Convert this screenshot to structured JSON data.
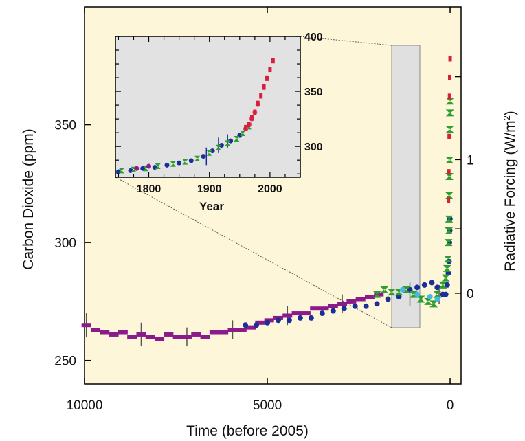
{
  "colors": {
    "panel_background": "#fdf6d8",
    "inset_background": "#e2e2e2",
    "highlight_box": "#e0e0e0",
    "series_purple": "#8b1a8b",
    "series_blue": "#1a2f9a",
    "series_green": "#2e9e2e",
    "series_cyan": "#49b8e0",
    "series_red": "#d8203a",
    "series_pink": "#e04690"
  },
  "chart_data": [
    {
      "type": "scatter",
      "xlabel": "Time (before 2005)",
      "ylabel": "Carbon Dioxide (ppm)",
      "y2label_main": "Radiative Forcing (W/m",
      "y2label_sup": "2",
      "y2label_end": ")",
      "x_reversed": true,
      "xlim": [
        10000,
        -300
      ],
      "ylim": [
        240,
        400
      ],
      "x_ticks": [
        10000,
        5000,
        0
      ],
      "y_ticks": [
        250,
        300,
        350
      ],
      "y2_ticks": [
        {
          "value": 0,
          "label": "0"
        },
        {
          "value": 1,
          "label": "1"
        }
      ],
      "y2_tick_positions_ppm": [
        278.5,
        305.8,
        335.2,
        370.4
      ],
      "series": [
        {
          "color": "#8b1a8b",
          "points": [
            [
              9950,
              265
            ],
            [
              9700,
              263
            ],
            [
              9450,
              262
            ],
            [
              9200,
              261
            ],
            [
              8950,
              262
            ],
            [
              8700,
              260
            ],
            [
              8450,
              261
            ],
            [
              8200,
              260
            ],
            [
              7950,
              259
            ],
            [
              7700,
              261
            ],
            [
              7450,
              260
            ],
            [
              7200,
              260
            ],
            [
              6950,
              261
            ],
            [
              6700,
              260
            ],
            [
              6450,
              262
            ],
            [
              6200,
              262
            ],
            [
              5950,
              263
            ],
            [
              5700,
              263
            ],
            [
              5450,
              264
            ],
            [
              5200,
              266
            ],
            [
              4950,
              267
            ],
            [
              4700,
              268
            ],
            [
              4450,
              269
            ],
            [
              4200,
              270
            ],
            [
              3950,
              270
            ],
            [
              3700,
              272
            ],
            [
              3450,
              272
            ],
            [
              3200,
              273
            ],
            [
              2950,
              274
            ],
            [
              2700,
              275
            ],
            [
              2450,
              276
            ],
            [
              2200,
              277
            ],
            [
              1950,
              278
            ]
          ]
        },
        {
          "color": "#1a2f9a",
          "points": [
            [
              5600,
              265
            ],
            [
              5300,
              265
            ],
            [
              5000,
              266
            ],
            [
              4700,
              267
            ],
            [
              4400,
              267
            ],
            [
              4100,
              268
            ],
            [
              3800,
              268
            ],
            [
              3500,
              270
            ],
            [
              3200,
              271
            ],
            [
              2900,
              272
            ],
            [
              2600,
              273
            ],
            [
              2300,
              273
            ],
            [
              2000,
              274
            ],
            [
              1700,
              276
            ],
            [
              1400,
              277
            ],
            [
              1100,
              280
            ],
            [
              900,
              281
            ],
            [
              700,
              282
            ],
            [
              500,
              283
            ],
            [
              350,
              281
            ],
            [
              200,
              278
            ],
            [
              120,
              278
            ],
            [
              80,
              282
            ],
            [
              50,
              287
            ],
            [
              30,
              292
            ],
            [
              20,
              300
            ],
            [
              10,
              305
            ],
            [
              5,
              310
            ]
          ]
        },
        {
          "color": "#2e9e2e",
          "points": [
            [
              2000,
              278
            ],
            [
              1800,
              280
            ],
            [
              1600,
              279
            ],
            [
              1400,
              279
            ],
            [
              1200,
              280
            ],
            [
              1000,
              278
            ],
            [
              800,
              276
            ],
            [
              600,
              275
            ],
            [
              450,
              274
            ],
            [
              350,
              278
            ],
            [
              200,
              282
            ],
            [
              120,
              285
            ],
            [
              80,
              289
            ],
            [
              60,
              293
            ],
            [
              45,
              300
            ],
            [
              35,
              305
            ],
            [
              30,
              310
            ],
            [
              25,
              320
            ],
            [
              20,
              328
            ],
            [
              15,
              335
            ],
            [
              10,
              348
            ],
            [
              5,
              355
            ],
            [
              2,
              360
            ]
          ]
        },
        {
          "color": "#49b8e0",
          "points": [
            [
              1300,
              280
            ],
            [
              900,
              278
            ],
            [
              550,
              277
            ],
            [
              350,
              276
            ]
          ]
        },
        {
          "color": "#d8203a",
          "points": [
            [
              45,
              318
            ],
            [
              35,
              330
            ],
            [
              25,
              345
            ],
            [
              15,
              362
            ],
            [
              10,
              370
            ],
            [
              0,
              378
            ]
          ]
        }
      ],
      "error_bars": [
        [
          9950,
          5
        ],
        [
          8450,
          5
        ],
        [
          7200,
          4
        ],
        [
          5950,
          4
        ],
        [
          4450,
          4
        ],
        [
          2950,
          4
        ],
        [
          1100,
          5
        ],
        [
          300,
          4
        ]
      ]
    },
    {
      "type": "scatter",
      "xlabel": "Year",
      "ylabel": "",
      "xlim": [
        1745,
        2050
      ],
      "ylim": [
        272,
        400
      ],
      "x_ticks": [
        1800,
        1900,
        2000
      ],
      "y_ticks": [
        300,
        350,
        400
      ],
      "series": [
        {
          "color": "#1a2f9a",
          "points": [
            [
              1750,
              277
            ],
            [
              1770,
              278
            ],
            [
              1790,
              280
            ],
            [
              1810,
              281
            ],
            [
              1830,
              283
            ],
            [
              1850,
              285
            ],
            [
              1870,
              287
            ],
            [
              1890,
              291
            ],
            [
              1905,
              296
            ],
            [
              1920,
              301
            ],
            [
              1935,
              305
            ],
            [
              1950,
              310
            ],
            [
              1960,
              316
            ]
          ]
        },
        {
          "color": "#2e9e2e",
          "points": [
            [
              1755,
              278
            ],
            [
              1775,
              279
            ],
            [
              1795,
              280
            ],
            [
              1815,
              282
            ],
            [
              1840,
              284
            ],
            [
              1860,
              286
            ],
            [
              1880,
              289
            ],
            [
              1900,
              294
            ],
            [
              1915,
              299
            ],
            [
              1930,
              303
            ],
            [
              1945,
              307
            ],
            [
              1955,
              312
            ],
            [
              1965,
              318
            ]
          ]
        },
        {
          "color": "#8b1a8b",
          "points": [
            [
              1780,
              280
            ],
            [
              1800,
              282
            ]
          ]
        },
        {
          "color": "#e04690",
          "points": [
            [
              1960,
              316
            ],
            [
              1966,
              320
            ],
            [
              1970,
              325
            ],
            [
              1975,
              331
            ],
            [
              1980,
              338
            ]
          ]
        },
        {
          "color": "#d8203a",
          "points": [
            [
              1960,
              317
            ],
            [
              1965,
              320
            ],
            [
              1970,
              326
            ],
            [
              1975,
              331
            ],
            [
              1980,
              339
            ],
            [
              1985,
              346
            ],
            [
              1990,
              354
            ],
            [
              1995,
              362
            ],
            [
              2000,
              370
            ],
            [
              2005,
              378
            ]
          ]
        }
      ],
      "error_bars": [
        [
          1895,
          8
        ],
        [
          1915,
          7
        ],
        [
          1930,
          6
        ]
      ]
    }
  ]
}
